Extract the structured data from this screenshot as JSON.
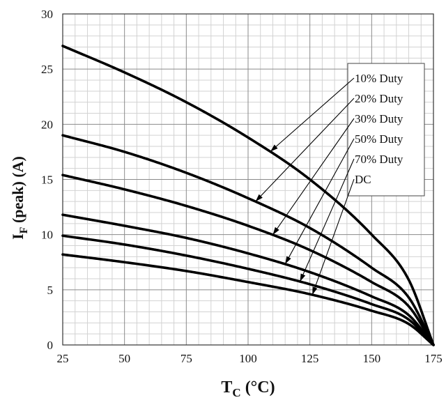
{
  "chart_data": {
    "type": "line",
    "title": "",
    "xlabel": {
      "main": "T",
      "sub": "C",
      "rest": " (°C)"
    },
    "ylabel": {
      "main": "I",
      "sub": "F",
      "rest": " (peak) (A)"
    },
    "xlim": [
      25,
      175
    ],
    "ylim": [
      0,
      30
    ],
    "x_ticks": [
      25,
      50,
      75,
      100,
      125,
      150,
      175
    ],
    "y_ticks": [
      0,
      5,
      10,
      15,
      20,
      25,
      30
    ],
    "grid": true,
    "legend_position": "top-right",
    "line_color": "#000000",
    "x": [
      25,
      50,
      75,
      100,
      125,
      150,
      165,
      175
    ],
    "series": [
      {
        "name": "10% Duty",
        "values": [
          27.1,
          24.7,
          22.0,
          18.8,
          15.0,
          10.0,
          5.9,
          0
        ]
      },
      {
        "name": "20% Duty",
        "values": [
          19.0,
          17.5,
          15.6,
          13.3,
          10.6,
          7.0,
          4.3,
          0
        ]
      },
      {
        "name": "30% Duty",
        "values": [
          15.4,
          14.1,
          12.6,
          10.8,
          8.6,
          5.7,
          3.5,
          0
        ]
      },
      {
        "name": "50% Duty",
        "values": [
          11.8,
          10.8,
          9.7,
          8.3,
          6.6,
          4.4,
          2.7,
          0
        ]
      },
      {
        "name": "70% Duty",
        "values": [
          9.9,
          9.1,
          8.1,
          6.9,
          5.5,
          3.7,
          2.3,
          0
        ]
      },
      {
        "name": "DC",
        "values": [
          8.2,
          7.5,
          6.7,
          5.7,
          4.6,
          3.1,
          1.9,
          0
        ]
      }
    ],
    "arrow_targets": [
      {
        "series": "10% Duty",
        "x": 109
      },
      {
        "series": "20% Duty",
        "x": 103
      },
      {
        "series": "30% Duty",
        "x": 110
      },
      {
        "series": "50% Duty",
        "x": 115
      },
      {
        "series": "70% Duty",
        "x": 121
      },
      {
        "series": "DC",
        "x": 126
      }
    ]
  }
}
